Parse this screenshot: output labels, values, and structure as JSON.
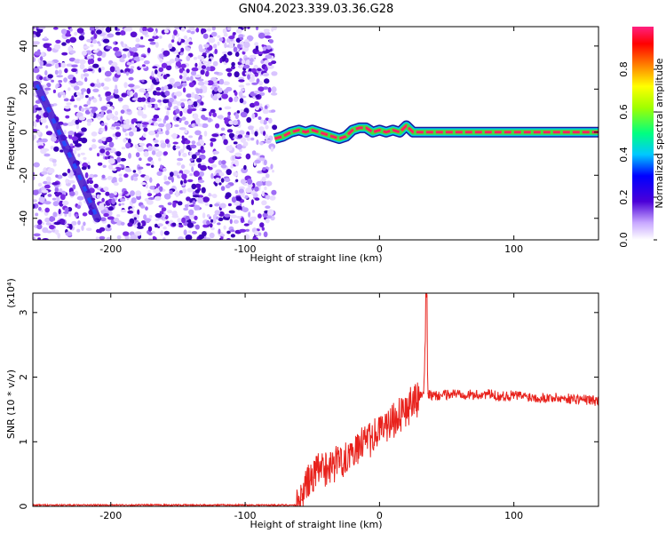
{
  "title": "GN04.2023.339.03.36.G28",
  "colors": {
    "series": "#e8221c",
    "axis": "#000000",
    "scatter": "#7a2ae6",
    "ridge": "#e8337a"
  },
  "chart_data": [
    {
      "type": "heatmap",
      "xlabel": "Height of straight line (km)",
      "ylabel": "Frequency (Hz)",
      "xlim": [
        -258,
        163
      ],
      "ylim": [
        -50,
        49
      ],
      "xticks": [
        -200,
        -100,
        0,
        100
      ],
      "yticks": [
        -40,
        -20,
        0,
        20,
        40
      ],
      "noise_region_x": [
        -258,
        -78
      ],
      "ridge": {
        "x": [
          -78,
          -72,
          -66,
          -60,
          -55,
          -50,
          -45,
          -40,
          -35,
          -30,
          -25,
          -20,
          -15,
          -10,
          -5,
          0,
          5,
          10,
          15,
          20,
          25,
          163
        ],
        "y": [
          -3,
          -2,
          0,
          1,
          0,
          1,
          0,
          -1,
          -2,
          -3,
          -2,
          1,
          2,
          2,
          0,
          1,
          0,
          1,
          0,
          3,
          0,
          0
        ]
      },
      "streak": {
        "x": [
          -255,
          -240,
          -225,
          -210
        ],
        "y": [
          22,
          2,
          -18,
          -40
        ]
      },
      "colorbar": {
        "label": "Normalized spectral amplitude",
        "range": [
          0,
          1
        ],
        "ticks": [
          "0.0",
          "0.2",
          "0.4",
          "0.6",
          "0.8"
        ]
      }
    },
    {
      "type": "line",
      "xlabel": "Height of straight line (km)",
      "ylabel": "SNR (10 * v/v)",
      "multiplier": "(x10⁴)",
      "xlim": [
        -258,
        163
      ],
      "ylim": [
        0,
        3.3
      ],
      "xticks": [
        -200,
        -100,
        0,
        100
      ],
      "yticks": [
        0,
        1,
        2,
        3
      ],
      "series": [
        {
          "x": [
            -258,
            -200,
            -150,
            -100,
            -70,
            -62,
            -58,
            -55,
            -50,
            -45,
            -40,
            -30,
            -20,
            -10,
            0,
            10,
            20,
            25,
            30,
            33,
            35,
            36,
            38,
            40,
            50,
            60,
            70,
            80,
            90,
            100,
            110,
            120,
            130,
            140,
            150,
            163
          ],
          "y": [
            0.02,
            0.02,
            0.02,
            0.02,
            0.02,
            0.02,
            0.1,
            0.35,
            0.45,
            0.55,
            0.6,
            0.7,
            0.85,
            1.0,
            1.15,
            1.35,
            1.5,
            1.62,
            1.7,
            1.75,
            3.3,
            1.75,
            1.72,
            1.7,
            1.73,
            1.75,
            1.72,
            1.74,
            1.7,
            1.72,
            1.7,
            1.68,
            1.68,
            1.67,
            1.66,
            1.63
          ]
        }
      ]
    }
  ]
}
